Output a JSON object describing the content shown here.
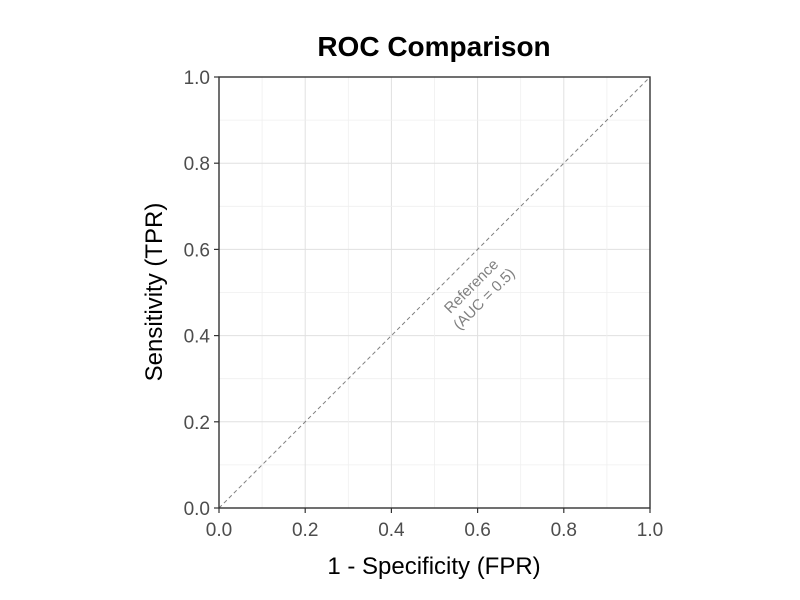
{
  "chart_data": {
    "type": "line",
    "title": "ROC Comparison",
    "xlabel": "1 - Specificity (FPR)",
    "ylabel": "Sensitivity (TPR)",
    "xlim": [
      0,
      1
    ],
    "ylim": [
      0,
      1
    ],
    "x_ticks": [
      "0.0",
      "0.2",
      "0.4",
      "0.6",
      "0.8",
      "1.0"
    ],
    "y_ticks": [
      "0.0",
      "0.2",
      "0.4",
      "0.6",
      "0.8",
      "1.0"
    ],
    "grid": true,
    "series": [
      {
        "name": "",
        "style": "dashed",
        "color": "#808080",
        "x": [
          0,
          1
        ],
        "y": [
          0,
          1
        ]
      }
    ],
    "annotations": [
      {
        "lines": [
          "Reference",
          "(AUC = 0.5)"
        ],
        "x": 0.6,
        "y": 0.5,
        "rotation_deg": -45
      }
    ]
  }
}
